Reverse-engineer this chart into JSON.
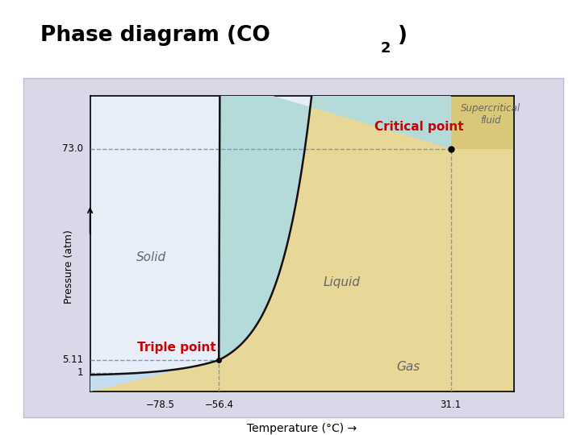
{
  "bg_outer": "#d8d8e8",
  "bg_plot": "#e8eef8",
  "xlabel": "Temperature (°C) →",
  "ylabel": "Pressure (atm)",
  "xlim": [
    -105,
    55
  ],
  "ylim": [
    -5,
    90
  ],
  "triple_point": [
    -56.4,
    5.11
  ],
  "critical_point": [
    31.1,
    73.0
  ],
  "tick_temps": [
    -78.5,
    -56.4,
    31.1
  ],
  "tick_temp_labels": [
    "−78.5",
    "−56.4",
    "31.1"
  ],
  "tick_pressures": [
    1.0,
    5.11,
    73.0
  ],
  "tick_press_labels": [
    "1",
    "5.11",
    "73.0"
  ],
  "solid_color": "#c5ddf0",
  "liquid_color": "#b5dada",
  "gas_color": "#e8d898",
  "supercritical_color": "#d8c878",
  "critical_label_color": "#cc0000",
  "triple_label_color": "#cc0000",
  "phase_label_color": "#666666",
  "line_color": "#111111",
  "dashed_color": "#7799bb",
  "font_family": "DejaVu Sans"
}
